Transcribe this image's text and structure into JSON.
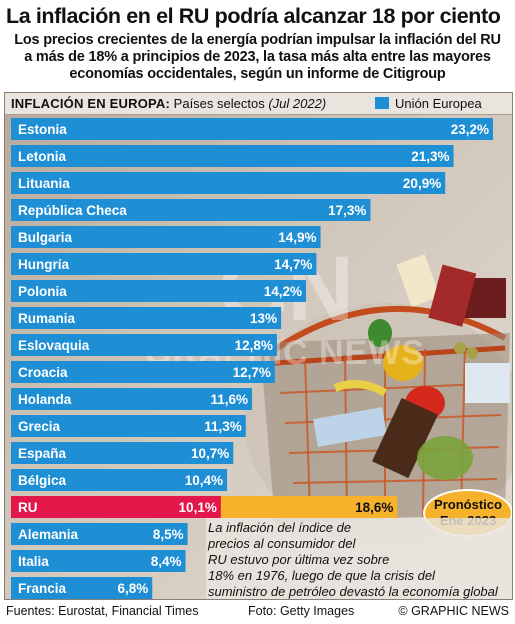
{
  "header": {
    "title": "La inflación en el RU podría alcanzar 18 por ciento",
    "subtitle_lines": [
      "Los precios crecientes de la energía podrían impulsar la inflación del RU",
      "a más de 18% a principios de 2023, la tasa más alta entre las mayores",
      "economías occidentales, según un informe de Citigroup"
    ]
  },
  "panel": {
    "heading_strong": "INFLACIÓN EN EUROPA:",
    "heading_normal": "Países selectos",
    "heading_date": "(Jul 2022)",
    "legend_label": "Unión Europea"
  },
  "colors": {
    "eu_bar": "#1e8fd5",
    "uk_bar": "#e4174a",
    "forecast_bar": "#f7b22b"
  },
  "chart_data": {
    "type": "bar",
    "orientation": "horizontal",
    "title": "INFLACIÓN EN EUROPA: Países selectos (Jul 2022)",
    "categories": [
      "Estonia",
      "Letonia",
      "Lituania",
      "República Checa",
      "Bulgaria",
      "Hungría",
      "Polonia",
      "Rumania",
      "Eslovaquia",
      "Croacia",
      "Holanda",
      "Grecia",
      "España",
      "Bélgica",
      "RU",
      "Alemania",
      "Italia",
      "Francia"
    ],
    "values": [
      23.2,
      21.3,
      20.9,
      17.3,
      14.9,
      14.7,
      14.2,
      13,
      12.8,
      12.7,
      11.6,
      11.3,
      10.7,
      10.4,
      10.1,
      8.5,
      8.4,
      6.8
    ],
    "value_labels": [
      "23,2%",
      "21,3%",
      "20,9%",
      "17,3%",
      "14,9%",
      "14,7%",
      "14,2%",
      "13%",
      "12,8%",
      "12,7%",
      "11,6%",
      "11,3%",
      "10,7%",
      "10,4%",
      "10,1%",
      "8,5%",
      "8,4%",
      "6,8%"
    ],
    "eu_member": [
      true,
      true,
      true,
      true,
      true,
      true,
      true,
      true,
      true,
      true,
      true,
      true,
      true,
      true,
      false,
      true,
      true,
      true
    ],
    "series": [
      {
        "name": "Unión Europea",
        "values": [
          23.2,
          21.3,
          20.9,
          17.3,
          14.9,
          14.7,
          14.2,
          13,
          12.8,
          12.7,
          11.6,
          11.3,
          10.7,
          10.4,
          null,
          8.5,
          8.4,
          6.8
        ]
      }
    ],
    "forecast": {
      "category": "RU",
      "value": 18.6,
      "value_label": "18,6%",
      "label_lines": [
        "Pronóstico",
        "Ene 2023"
      ]
    },
    "xlim": [
      0,
      23.2
    ],
    "grid": false,
    "legend_position": "top-right",
    "annotation": [
      "La inflación del índice de",
      "precios al consumidor del",
      "RU estuvo por última vez sobre",
      "18% en 1976, luego de que la crisis del",
      "suministro de petróleo devastó la economía global"
    ]
  },
  "watermark": {
    "logo": "GN",
    "text": "GRAPHIC NEWS"
  },
  "footer": {
    "sources": "Fuentes: Eurostat, Financial Times",
    "photo": "Foto: Getty Images",
    "copyright": "© GRAPHIC NEWS"
  }
}
